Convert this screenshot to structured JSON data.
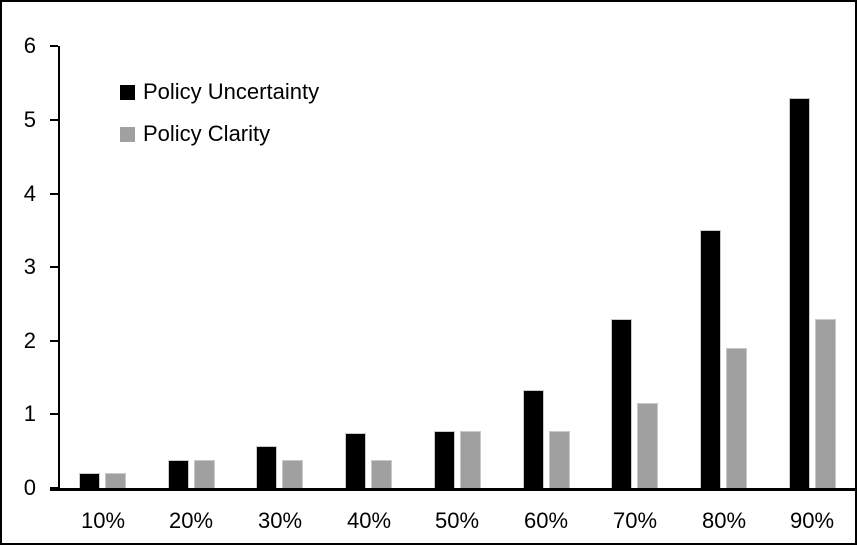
{
  "chart_data": {
    "type": "bar",
    "title": "",
    "xlabel": "",
    "ylabel": "",
    "categories": [
      "10%",
      "20%",
      "30%",
      "40%",
      "50%",
      "60%",
      "70%",
      "80%",
      "90%"
    ],
    "series": [
      {
        "name": "Policy Uncertainty",
        "color": "#000000",
        "values": [
          0.2,
          0.38,
          0.57,
          0.75,
          0.77,
          1.33,
          2.3,
          3.5,
          5.3
        ]
      },
      {
        "name": "Policy Clarity",
        "color": "#a0a0a0",
        "values": [
          0.2,
          0.38,
          0.38,
          0.38,
          0.77,
          0.77,
          1.15,
          1.9,
          2.3
        ]
      }
    ],
    "ylim": [
      0,
      6
    ],
    "yticks": [
      "0",
      "1",
      "2",
      "3",
      "4",
      "5",
      "6"
    ],
    "grid": false,
    "legend_position": "top-left"
  }
}
